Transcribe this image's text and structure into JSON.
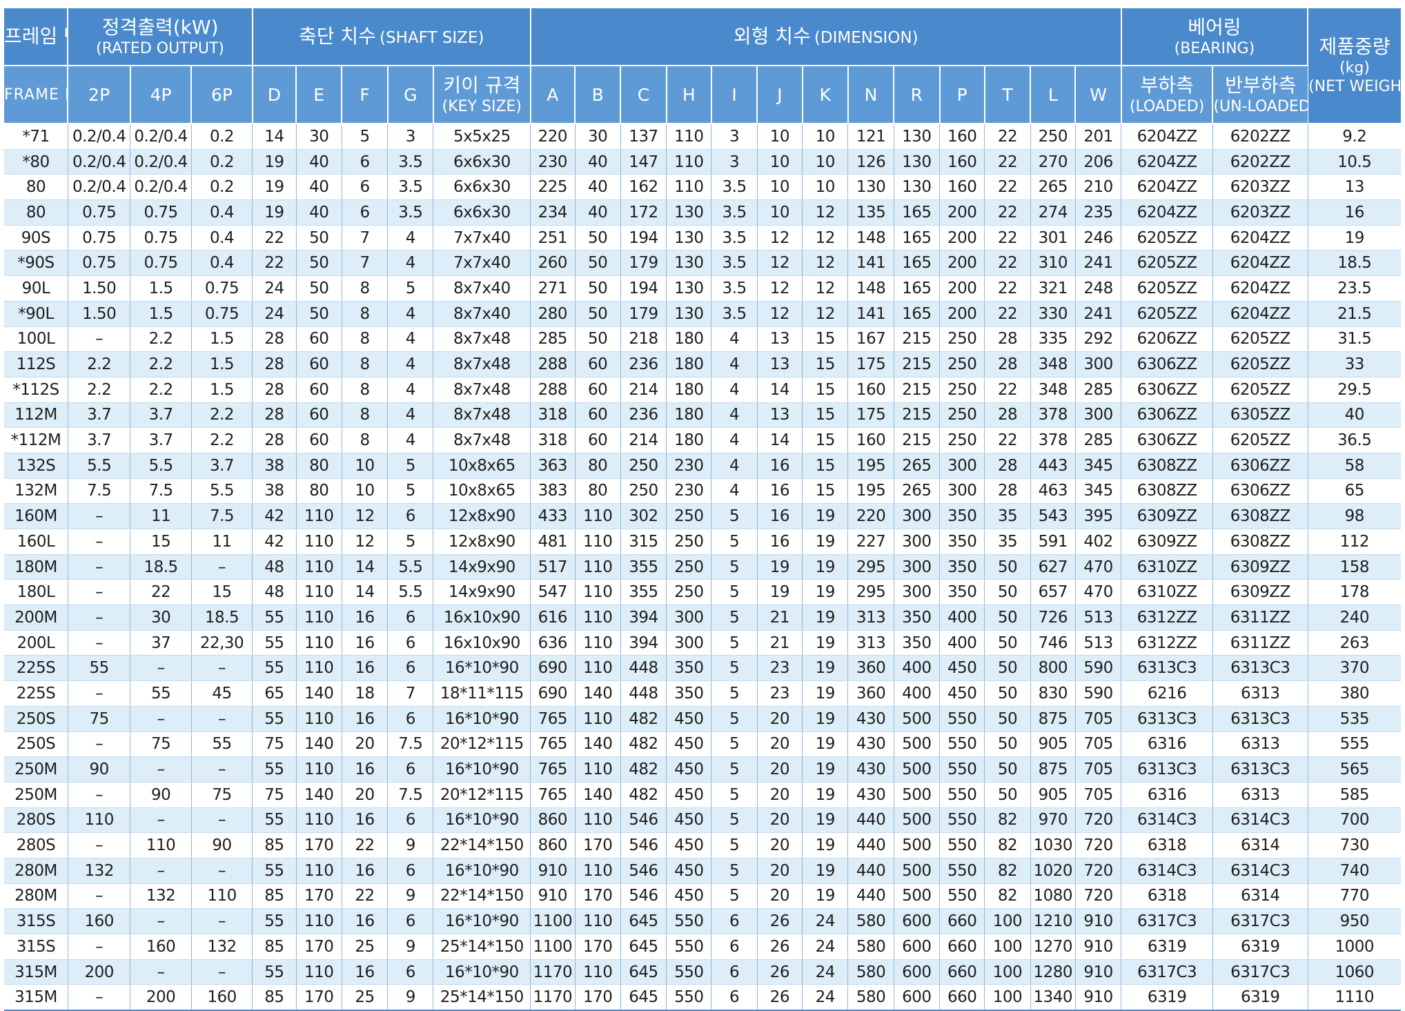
{
  "headers": {
    "frame_ko": "프레임 번호",
    "rated_ko": "정격출력(kW)",
    "rated_en": "(RATED OUTPUT)",
    "shaft_ko": "축단 치수",
    "shaft_en": "(SHAFT SIZE)",
    "dim_ko": "외형 치수",
    "dim_en": "(DIMENSION)",
    "bearing_ko": "베어링",
    "bearing_en": "(BEARING)",
    "weight_ko": "제품중량",
    "weight_unit": "(kg)",
    "weight_en": "(NET WEIGHT)",
    "frame_en": "FRAME NO.",
    "p2": "2P",
    "p4": "4P",
    "p6": "6P",
    "D": "D",
    "E": "E",
    "F": "F",
    "G": "G",
    "key_ko": "키이 규격",
    "key_en": "(KEY SIZE)",
    "A": "A",
    "B": "B",
    "C": "C",
    "H": "H",
    "I": "I",
    "J": "J",
    "K": "K",
    "N": "N",
    "R": "R",
    "P": "P",
    "T": "T",
    "L": "L",
    "W": "W",
    "loaded_ko": "부하측",
    "loaded_en": "(LOADED)",
    "unloaded_ko": "반부하측",
    "unloaded_en": "(UN-LOADED)"
  },
  "rows": [
    [
      "*71",
      "0.2/0.4",
      "0.2/0.4",
      "0.2",
      "14",
      "30",
      "5",
      "3",
      "5x5x25",
      "220",
      "30",
      "137",
      "110",
      "3",
      "10",
      "10",
      "121",
      "130",
      "160",
      "22",
      "250",
      "201",
      "6204ZZ",
      "6202ZZ",
      "9.2"
    ],
    [
      "*80",
      "0.2/0.4",
      "0.2/0.4",
      "0.2",
      "19",
      "40",
      "6",
      "3.5",
      "6x6x30",
      "230",
      "40",
      "147",
      "110",
      "3",
      "10",
      "10",
      "126",
      "130",
      "160",
      "22",
      "270",
      "206",
      "6204ZZ",
      "6202ZZ",
      "10.5"
    ],
    [
      "80",
      "0.2/0.4",
      "0.2/0.4",
      "0.2",
      "19",
      "40",
      "6",
      "3.5",
      "6x6x30",
      "225",
      "40",
      "162",
      "110",
      "3.5",
      "10",
      "10",
      "130",
      "130",
      "160",
      "22",
      "265",
      "210",
      "6204ZZ",
      "6203ZZ",
      "13"
    ],
    [
      "80",
      "0.75",
      "0.75",
      "0.4",
      "19",
      "40",
      "6",
      "3.5",
      "6x6x30",
      "234",
      "40",
      "172",
      "130",
      "3.5",
      "10",
      "12",
      "135",
      "165",
      "200",
      "22",
      "274",
      "235",
      "6204ZZ",
      "6203ZZ",
      "16"
    ],
    [
      "90S",
      "0.75",
      "0.75",
      "0.4",
      "22",
      "50",
      "7",
      "4",
      "7x7x40",
      "251",
      "50",
      "194",
      "130",
      "3.5",
      "12",
      "12",
      "148",
      "165",
      "200",
      "22",
      "301",
      "246",
      "6205ZZ",
      "6204ZZ",
      "19"
    ],
    [
      "*90S",
      "0.75",
      "0.75",
      "0.4",
      "22",
      "50",
      "7",
      "4",
      "7x7x40",
      "260",
      "50",
      "179",
      "130",
      "3.5",
      "12",
      "12",
      "141",
      "165",
      "200",
      "22",
      "310",
      "241",
      "6205ZZ",
      "6204ZZ",
      "18.5"
    ],
    [
      "90L",
      "1.50",
      "1.5",
      "0.75",
      "24",
      "50",
      "8",
      "5",
      "8x7x40",
      "271",
      "50",
      "194",
      "130",
      "3.5",
      "12",
      "12",
      "148",
      "165",
      "200",
      "22",
      "321",
      "248",
      "6205ZZ",
      "6204ZZ",
      "23.5"
    ],
    [
      "*90L",
      "1.50",
      "1.5",
      "0.75",
      "24",
      "50",
      "8",
      "4",
      "8x7x40",
      "280",
      "50",
      "179",
      "130",
      "3.5",
      "12",
      "12",
      "141",
      "165",
      "200",
      "22",
      "330",
      "241",
      "6205ZZ",
      "6204ZZ",
      "21.5"
    ],
    [
      "100L",
      "–",
      "2.2",
      "1.5",
      "28",
      "60",
      "8",
      "4",
      "8x7x48",
      "285",
      "50",
      "218",
      "180",
      "4",
      "13",
      "15",
      "167",
      "215",
      "250",
      "28",
      "335",
      "292",
      "6206ZZ",
      "6205ZZ",
      "31.5"
    ],
    [
      "112S",
      "2.2",
      "2.2",
      "1.5",
      "28",
      "60",
      "8",
      "4",
      "8x7x48",
      "288",
      "60",
      "236",
      "180",
      "4",
      "13",
      "15",
      "175",
      "215",
      "250",
      "28",
      "348",
      "300",
      "6306ZZ",
      "6205ZZ",
      "33"
    ],
    [
      "*112S",
      "2.2",
      "2.2",
      "1.5",
      "28",
      "60",
      "8",
      "4",
      "8x7x48",
      "288",
      "60",
      "214",
      "180",
      "4",
      "14",
      "15",
      "160",
      "215",
      "250",
      "22",
      "348",
      "285",
      "6306ZZ",
      "6205ZZ",
      "29.5"
    ],
    [
      "112M",
      "3.7",
      "3.7",
      "2.2",
      "28",
      "60",
      "8",
      "4",
      "8x7x48",
      "318",
      "60",
      "236",
      "180",
      "4",
      "13",
      "15",
      "175",
      "215",
      "250",
      "28",
      "378",
      "300",
      "6306ZZ",
      "6305ZZ",
      "40"
    ],
    [
      "*112M",
      "3.7",
      "3.7",
      "2.2",
      "28",
      "60",
      "8",
      "4",
      "8x7x48",
      "318",
      "60",
      "214",
      "180",
      "4",
      "14",
      "15",
      "160",
      "215",
      "250",
      "22",
      "378",
      "285",
      "6306ZZ",
      "6205ZZ",
      "36.5"
    ],
    [
      "132S",
      "5.5",
      "5.5",
      "3.7",
      "38",
      "80",
      "10",
      "5",
      "10x8x65",
      "363",
      "80",
      "250",
      "230",
      "4",
      "16",
      "15",
      "195",
      "265",
      "300",
      "28",
      "443",
      "345",
      "6308ZZ",
      "6306ZZ",
      "58"
    ],
    [
      "132M",
      "7.5",
      "7.5",
      "5.5",
      "38",
      "80",
      "10",
      "5",
      "10x8x65",
      "383",
      "80",
      "250",
      "230",
      "4",
      "16",
      "15",
      "195",
      "265",
      "300",
      "28",
      "463",
      "345",
      "6308ZZ",
      "6306ZZ",
      "65"
    ],
    [
      "160M",
      "–",
      "11",
      "7.5",
      "42",
      "110",
      "12",
      "6",
      "12x8x90",
      "433",
      "110",
      "302",
      "250",
      "5",
      "16",
      "19",
      "220",
      "300",
      "350",
      "35",
      "543",
      "395",
      "6309ZZ",
      "6308ZZ",
      "98"
    ],
    [
      "160L",
      "–",
      "15",
      "11",
      "42",
      "110",
      "12",
      "5",
      "12x8x90",
      "481",
      "110",
      "315",
      "250",
      "5",
      "16",
      "19",
      "227",
      "300",
      "350",
      "35",
      "591",
      "402",
      "6309ZZ",
      "6308ZZ",
      "112"
    ],
    [
      "180M",
      "–",
      "18.5",
      "–",
      "48",
      "110",
      "14",
      "5.5",
      "14x9x90",
      "517",
      "110",
      "355",
      "250",
      "5",
      "19",
      "19",
      "295",
      "300",
      "350",
      "50",
      "627",
      "470",
      "6310ZZ",
      "6309ZZ",
      "158"
    ],
    [
      "180L",
      "–",
      "22",
      "15",
      "48",
      "110",
      "14",
      "5.5",
      "14x9x90",
      "547",
      "110",
      "355",
      "250",
      "5",
      "19",
      "19",
      "295",
      "300",
      "350",
      "50",
      "657",
      "470",
      "6310ZZ",
      "6309ZZ",
      "178"
    ],
    [
      "200M",
      "–",
      "30",
      "18.5",
      "55",
      "110",
      "16",
      "6",
      "16x10x90",
      "616",
      "110",
      "394",
      "300",
      "5",
      "21",
      "19",
      "313",
      "350",
      "400",
      "50",
      "726",
      "513",
      "6312ZZ",
      "6311ZZ",
      "240"
    ],
    [
      "200L",
      "–",
      "37",
      "22,30",
      "55",
      "110",
      "16",
      "6",
      "16x10x90",
      "636",
      "110",
      "394",
      "300",
      "5",
      "21",
      "19",
      "313",
      "350",
      "400",
      "50",
      "746",
      "513",
      "6312ZZ",
      "6311ZZ",
      "263"
    ],
    [
      "225S",
      "55",
      "–",
      "–",
      "55",
      "110",
      "16",
      "6",
      "16*10*90",
      "690",
      "110",
      "448",
      "350",
      "5",
      "23",
      "19",
      "360",
      "400",
      "450",
      "50",
      "800",
      "590",
      "6313C3",
      "6313C3",
      "370"
    ],
    [
      "225S",
      "–",
      "55",
      "45",
      "65",
      "140",
      "18",
      "7",
      "18*11*115",
      "690",
      "140",
      "448",
      "350",
      "5",
      "23",
      "19",
      "360",
      "400",
      "450",
      "50",
      "830",
      "590",
      "6216",
      "6313",
      "380"
    ],
    [
      "250S",
      "75",
      "–",
      "–",
      "55",
      "110",
      "16",
      "6",
      "16*10*90",
      "765",
      "110",
      "482",
      "450",
      "5",
      "20",
      "19",
      "430",
      "500",
      "550",
      "50",
      "875",
      "705",
      "6313C3",
      "6313C3",
      "535"
    ],
    [
      "250S",
      "–",
      "75",
      "55",
      "75",
      "140",
      "20",
      "7.5",
      "20*12*115",
      "765",
      "140",
      "482",
      "450",
      "5",
      "20",
      "19",
      "430",
      "500",
      "550",
      "50",
      "905",
      "705",
      "6316",
      "6313",
      "555"
    ],
    [
      "250M",
      "90",
      "–",
      "–",
      "55",
      "110",
      "16",
      "6",
      "16*10*90",
      "765",
      "110",
      "482",
      "450",
      "5",
      "20",
      "19",
      "430",
      "500",
      "550",
      "50",
      "875",
      "705",
      "6313C3",
      "6313C3",
      "565"
    ],
    [
      "250M",
      "–",
      "90",
      "75",
      "75",
      "140",
      "20",
      "7.5",
      "20*12*115",
      "765",
      "140",
      "482",
      "450",
      "5",
      "20",
      "19",
      "430",
      "500",
      "550",
      "50",
      "905",
      "705",
      "6316",
      "6313",
      "585"
    ],
    [
      "280S",
      "110",
      "–",
      "–",
      "55",
      "110",
      "16",
      "6",
      "16*10*90",
      "860",
      "110",
      "546",
      "450",
      "5",
      "20",
      "19",
      "440",
      "500",
      "550",
      "82",
      "970",
      "720",
      "6314C3",
      "6314C3",
      "700"
    ],
    [
      "280S",
      "–",
      "110",
      "90",
      "85",
      "170",
      "22",
      "9",
      "22*14*150",
      "860",
      "170",
      "546",
      "450",
      "5",
      "20",
      "19",
      "440",
      "500",
      "550",
      "82",
      "1030",
      "720",
      "6318",
      "6314",
      "730"
    ],
    [
      "280M",
      "132",
      "–",
      "–",
      "55",
      "110",
      "16",
      "6",
      "16*10*90",
      "910",
      "110",
      "546",
      "450",
      "5",
      "20",
      "19",
      "440",
      "500",
      "550",
      "82",
      "1020",
      "720",
      "6314C3",
      "6314C3",
      "740"
    ],
    [
      "280M",
      "–",
      "132",
      "110",
      "85",
      "170",
      "22",
      "9",
      "22*14*150",
      "910",
      "170",
      "546",
      "450",
      "5",
      "20",
      "19",
      "440",
      "500",
      "550",
      "82",
      "1080",
      "720",
      "6318",
      "6314",
      "770"
    ],
    [
      "315S",
      "160",
      "–",
      "–",
      "55",
      "110",
      "16",
      "6",
      "16*10*90",
      "1100",
      "110",
      "645",
      "550",
      "6",
      "26",
      "24",
      "580",
      "600",
      "660",
      "100",
      "1210",
      "910",
      "6317C3",
      "6317C3",
      "950"
    ],
    [
      "315S",
      "–",
      "160",
      "132",
      "85",
      "170",
      "25",
      "9",
      "25*14*150",
      "1100",
      "170",
      "645",
      "550",
      "6",
      "26",
      "24",
      "580",
      "600",
      "660",
      "100",
      "1270",
      "910",
      "6319",
      "6319",
      "1000"
    ],
    [
      "315M",
      "200",
      "–",
      "–",
      "55",
      "110",
      "16",
      "6",
      "16*10*90",
      "1170",
      "110",
      "645",
      "550",
      "6",
      "26",
      "24",
      "580",
      "600",
      "660",
      "100",
      "1280",
      "910",
      "6317C3",
      "6317C3",
      "1060"
    ],
    [
      "315M",
      "–",
      "200",
      "160",
      "85",
      "170",
      "25",
      "9",
      "25*14*150",
      "1170",
      "170",
      "645",
      "550",
      "6",
      "26",
      "24",
      "580",
      "600",
      "660",
      "100",
      "1340",
      "910",
      "6319",
      "6319",
      "1110"
    ]
  ]
}
